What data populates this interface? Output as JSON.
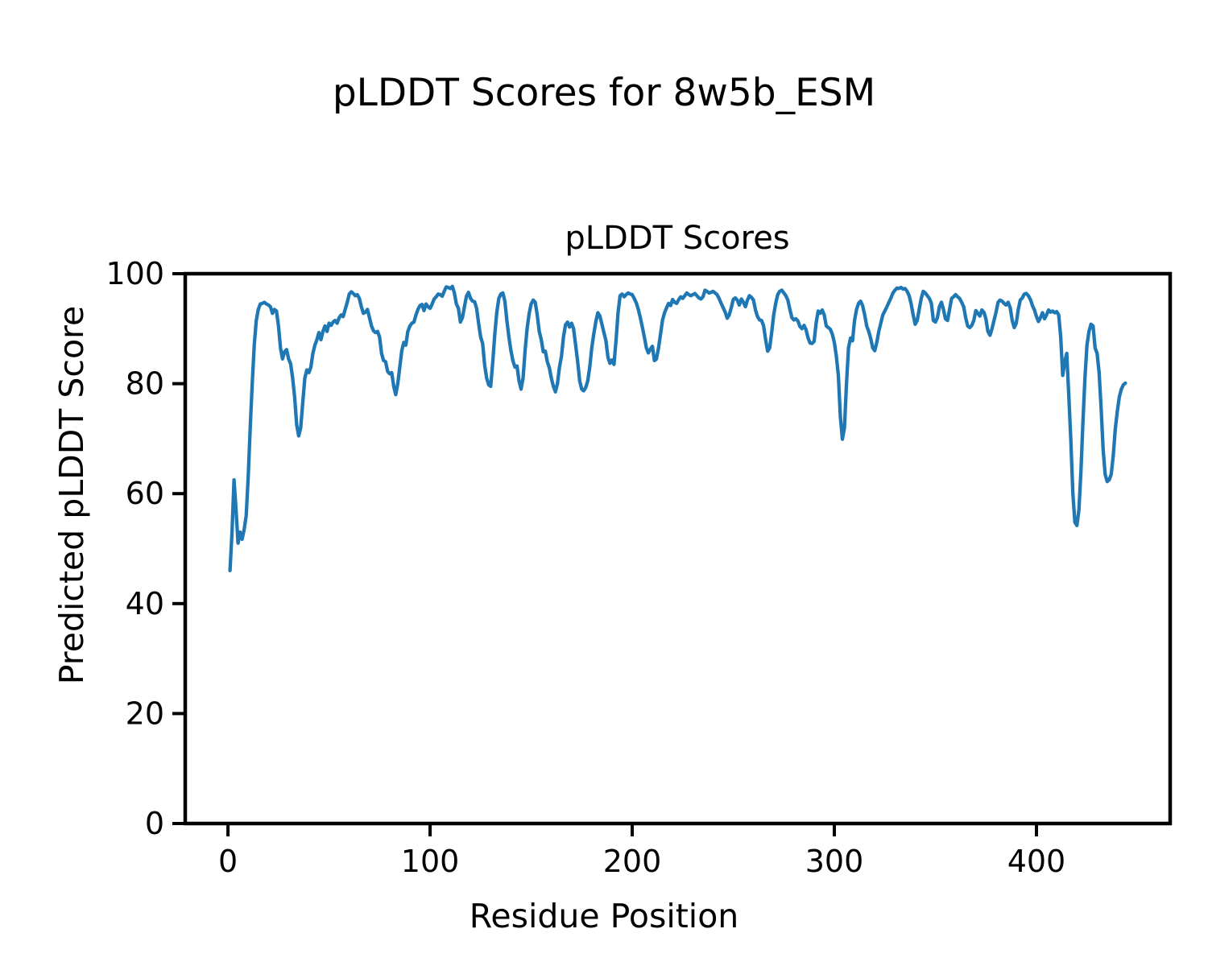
{
  "chart_data": {
    "type": "line",
    "suptitle": "pLDDT Scores for 8w5b_ESM",
    "title": "pLDDT Scores",
    "xlabel": "Residue Position",
    "ylabel": "Predicted pLDDT Score",
    "xlim": [
      -21.15,
      466.15
    ],
    "ylim": [
      0,
      100
    ],
    "x_ticks": [
      0,
      100,
      200,
      300,
      400
    ],
    "y_ticks": [
      0,
      20,
      40,
      60,
      80,
      100
    ],
    "grid": false,
    "legend_position": "none",
    "line_color": "#1f77b4",
    "axis_color": "#000000",
    "series": [
      {
        "name": "pLDDT",
        "x_start": 1,
        "values": [
          46,
          53,
          62.5,
          57,
          51,
          53,
          51.7,
          53.5,
          56,
          63,
          72,
          80,
          87,
          91.5,
          93.5,
          94.5,
          94.6,
          94.8,
          94.5,
          94.3,
          94,
          92.8,
          93.5,
          93.2,
          90.5,
          86.5,
          84.5,
          85.8,
          86.2,
          84.5,
          83.6,
          81,
          77.5,
          72.5,
          70.5,
          72,
          76.5,
          81,
          82.5,
          82,
          83,
          85.5,
          87,
          88,
          89.3,
          88,
          89.5,
          90.5,
          89.5,
          91,
          90.6,
          91.2,
          91.5,
          91,
          92,
          92.5,
          92.2,
          93.5,
          94.8,
          96.3,
          96.7,
          96.4,
          96,
          96.2,
          95.5,
          94,
          92.8,
          93,
          93.5,
          92,
          90.5,
          89.6,
          89.3,
          89.5,
          88.5,
          85.5,
          84.2,
          84,
          82.2,
          81.8,
          82,
          79.5,
          78,
          80,
          83,
          86,
          87.5,
          87,
          89.5,
          90.5,
          91,
          91.2,
          92.5,
          93.5,
          94.2,
          94.4,
          93.3,
          94.5,
          94,
          93.7,
          94.5,
          95.4,
          95.8,
          96.3,
          96.2,
          95.9,
          96.8,
          97.6,
          97.5,
          97.3,
          97.7,
          96.5,
          94.5,
          93.7,
          91.2,
          92,
          94,
          95.9,
          96.6,
          95.5,
          95,
          94.9,
          93.7,
          91,
          88.5,
          87.3,
          83.4,
          81,
          79.8,
          79.5,
          84,
          89,
          93,
          95.5,
          96.3,
          96.5,
          95,
          91.5,
          88.5,
          86,
          84.1,
          83,
          83.2,
          80.5,
          79,
          81,
          86,
          90,
          92.7,
          94.5,
          95.2,
          94.8,
          92.5,
          89.5,
          88,
          85.8,
          85.9,
          84,
          82.9,
          81,
          79.5,
          78.5,
          80,
          83,
          85,
          88.5,
          90.7,
          91.2,
          90.3,
          91,
          90,
          87,
          84,
          80.5,
          79,
          78.7,
          79.3,
          80.5,
          83,
          86.5,
          89,
          91.3,
          92.9,
          92.3,
          90.8,
          89.3,
          87.8,
          84.8,
          83.7,
          84.3,
          83.5,
          88,
          93,
          96,
          96.3,
          95.8,
          96.2,
          96.5,
          96.3,
          96.2,
          95.5,
          94.7,
          93.5,
          92,
          90.3,
          88.5,
          86.5,
          85.6,
          86.3,
          86.8,
          84.2,
          84.5,
          86.5,
          89,
          91.6,
          92.9,
          93.8,
          94.6,
          94.2,
          95.3,
          94.8,
          94.6,
          95.3,
          95.8,
          95.5,
          96,
          96.5,
          96.2,
          96,
          96.2,
          96.4,
          96,
          95.6,
          95.4,
          95.8,
          97,
          96.8,
          96.5,
          96.6,
          96.8,
          96.5,
          96.2,
          95.5,
          94.6,
          93.8,
          93,
          91.9,
          92.5,
          93.8,
          95.3,
          95.6,
          95.2,
          94.3,
          95.4,
          94.8,
          94,
          95.2,
          96,
          95.7,
          95.2,
          93.4,
          92.2,
          91.6,
          91.5,
          90.5,
          88,
          85.9,
          86.5,
          89.3,
          92.5,
          94.6,
          96.2,
          96.8,
          97,
          96.5,
          96,
          95.2,
          93.5,
          92,
          91.6,
          91.8,
          91.4,
          90.4,
          90,
          90.6,
          89.8,
          88.3,
          87.4,
          87.3,
          87.7,
          91,
          93.2,
          92.8,
          93.4,
          92.5,
          90.5,
          90.2,
          89.9,
          89,
          87.5,
          85,
          81.5,
          74,
          69.9,
          72,
          80,
          86.5,
          88.3,
          87.8,
          91.5,
          93.5,
          94.6,
          95,
          94.2,
          92.5,
          90.5,
          89.5,
          88.2,
          86.5,
          86,
          87.5,
          89.5,
          91,
          92.5,
          93.2,
          94,
          94.8,
          95.6,
          96.5,
          97,
          97.4,
          97.3,
          97.5,
          97.2,
          97.3,
          96.8,
          96,
          94.5,
          92.5,
          90.8,
          91.5,
          93.5,
          95.5,
          96.8,
          96.5,
          96,
          95.5,
          94.6,
          91.5,
          91.2,
          92,
          94,
          94.8,
          93.5,
          91.8,
          91.5,
          93.5,
          95.5,
          95.8,
          96.2,
          95.8,
          95.5,
          94.8,
          94,
          92,
          90.5,
          90.2,
          90.6,
          91.5,
          93.3,
          92.8,
          92.3,
          93.4,
          93,
          91.8,
          89.5,
          88.8,
          90,
          91.5,
          93,
          94.8,
          95.2,
          95,
          94.6,
          94.3,
          94.8,
          93.8,
          91.5,
          90.2,
          91,
          93.5,
          95.2,
          95.6,
          96.3,
          96.4,
          96,
          95.3,
          94.2,
          93.4,
          92.2,
          91.3,
          92,
          92.9,
          91.8,
          92.5,
          93.4,
          93,
          93.2,
          92.9,
          93.1,
          92.5,
          88.5,
          81.5,
          84,
          85.5,
          78,
          70,
          60,
          54.8,
          54.2,
          57,
          64,
          73,
          81,
          87,
          89.5,
          90.8,
          90.5,
          86.5,
          85.5,
          82,
          75.5,
          68,
          63.5,
          62.2,
          62.5,
          63.5,
          67,
          71.8,
          75,
          77.6,
          79,
          79.8,
          80.1
        ]
      }
    ]
  }
}
